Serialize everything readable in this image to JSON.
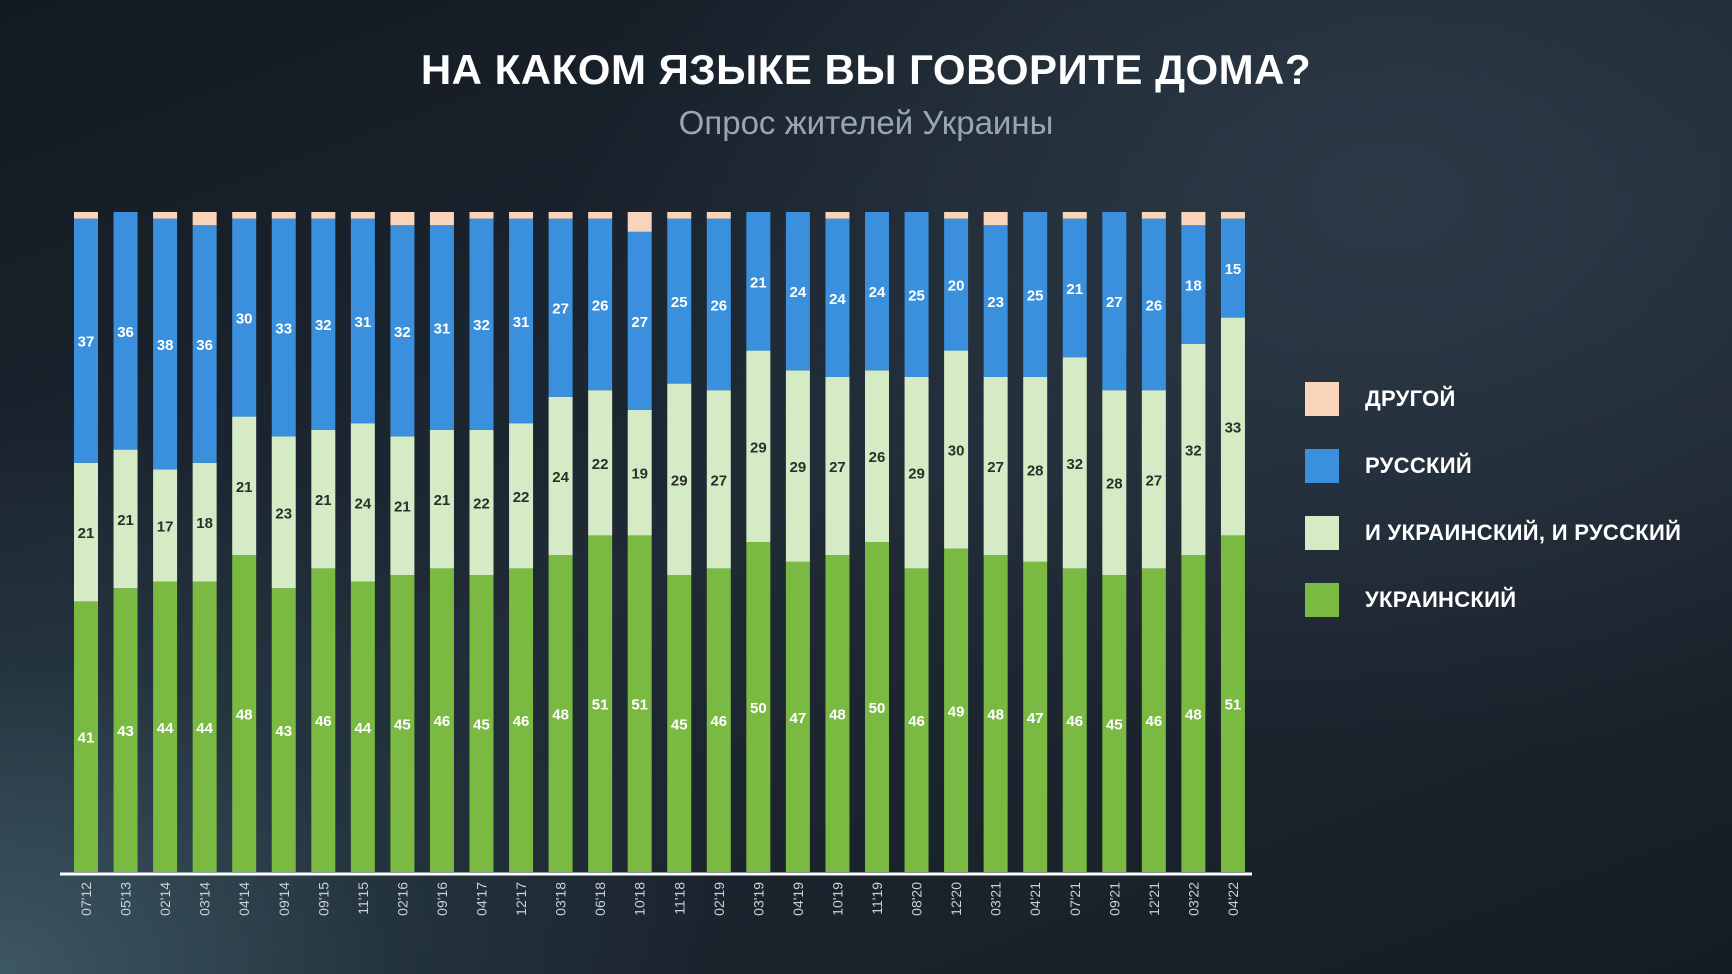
{
  "header": {
    "title": "НА КАКОМ ЯЗЫКЕ ВЫ ГОВОРИТЕ ДОМА?",
    "subtitle": "Опрос жителей Украины"
  },
  "chart_data": {
    "type": "bar",
    "stacked": true,
    "title": "НА КАКОМ ЯЗЫКЕ ВЫ ГОВОРИТЕ ДОМА?",
    "subtitle": "Опрос жителей Украины",
    "xlabel": "",
    "ylabel": "",
    "ylim": [
      0,
      100
    ],
    "legend_placement": "right",
    "categories": [
      "07'12",
      "05'13",
      "02'14",
      "03'14",
      "04'14",
      "09'14",
      "09'15",
      "11'15",
      "02'16",
      "09'16",
      "04'17",
      "12'17",
      "03'18",
      "06'18",
      "10'18",
      "11'18",
      "02'19",
      "03'19",
      "04'19",
      "10'19",
      "11'19",
      "08'20",
      "12'20",
      "03'21",
      "04'21",
      "07'21",
      "09'21",
      "12'21",
      "03'22",
      "04'22"
    ],
    "series": [
      {
        "name": "УКРАИНСКИЙ",
        "color": "#7aba43",
        "label_color": "#ffffff",
        "values": [
          41,
          43,
          44,
          44,
          48,
          43,
          46,
          44,
          45,
          46,
          45,
          46,
          48,
          51,
          51,
          45,
          46,
          50,
          47,
          48,
          50,
          46,
          49,
          48,
          47,
          46,
          45,
          46,
          48,
          51
        ]
      },
      {
        "name": "И УКРАИНСКИЙ, И РУССКИЙ",
        "color": "#d5ebc6",
        "label_color": "#2a2f2a",
        "values": [
          21,
          21,
          17,
          18,
          21,
          23,
          21,
          24,
          21,
          21,
          22,
          22,
          24,
          22,
          19,
          29,
          27,
          29,
          29,
          27,
          26,
          29,
          30,
          27,
          28,
          32,
          28,
          27,
          32,
          33
        ]
      },
      {
        "name": "РУССКИЙ",
        "color": "#3a90dc",
        "label_color": "#ffffff",
        "values": [
          37,
          36,
          38,
          36,
          30,
          33,
          32,
          31,
          32,
          31,
          32,
          31,
          27,
          26,
          27,
          25,
          26,
          21,
          24,
          24,
          24,
          25,
          20,
          23,
          25,
          21,
          27,
          26,
          18,
          15
        ]
      },
      {
        "name": "ДРУГОЙ",
        "color": "#f9d4b8",
        "label_color": "",
        "values": [
          1,
          0,
          1,
          2,
          1,
          1,
          1,
          1,
          2,
          2,
          1,
          1,
          1,
          1,
          3,
          1,
          1,
          0,
          0,
          1,
          0,
          0,
          1,
          2,
          0,
          1,
          0,
          1,
          2,
          1
        ],
        "labeled": false
      }
    ]
  },
  "legend": [
    {
      "label": "ДРУГОЙ",
      "color": "#f9d4b8"
    },
    {
      "label": "РУССКИЙ",
      "color": "#3a90dc"
    },
    {
      "label": "И УКРАИНСКИЙ, И РУССКИЙ",
      "color": "#d5ebc6"
    },
    {
      "label": "УКРАИНСКИЙ",
      "color": "#7aba43"
    }
  ]
}
